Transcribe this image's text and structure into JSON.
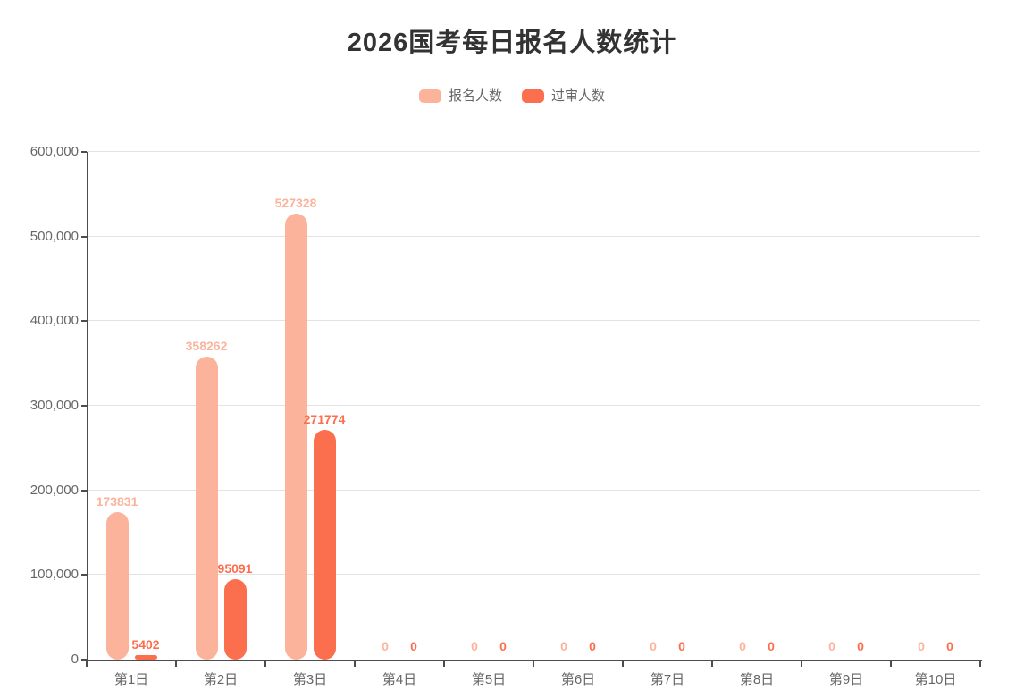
{
  "title": "2026国考每日报名人数统计",
  "legend": {
    "items": [
      {
        "label": "报名人数",
        "color": "#fcb39c"
      },
      {
        "label": "过审人数",
        "color": "#fb6e4e"
      }
    ]
  },
  "chart_data": {
    "type": "bar",
    "title": "2026国考每日报名人数统计",
    "categories": [
      "第1日",
      "第2日",
      "第3日",
      "第4日",
      "第5日",
      "第6日",
      "第7日",
      "第8日",
      "第9日",
      "第10日"
    ],
    "series": [
      {
        "name": "报名人数",
        "color": "#fcb39c",
        "values": [
          173831,
          358262,
          527328,
          0,
          0,
          0,
          0,
          0,
          0,
          0
        ]
      },
      {
        "name": "过审人数",
        "color": "#fb6e4e",
        "values": [
          5402,
          95091,
          271774,
          0,
          0,
          0,
          0,
          0,
          0,
          0
        ]
      }
    ],
    "xlabel": "",
    "ylabel": "",
    "ylim": [
      0,
      600000
    ],
    "ytick_step": 100000,
    "ytick_labels": [
      "0",
      "100,000",
      "200,000",
      "300,000",
      "400,000",
      "500,000",
      "600,000"
    ],
    "grid": true,
    "legend_position": "top",
    "data_labels": true
  },
  "colors": {
    "series_1": "#fcb39c",
    "series_2": "#fb6e4e",
    "axis": "#4d4d4d",
    "grid": "#e3e3e3",
    "text": "#666666",
    "title": "#333333"
  }
}
